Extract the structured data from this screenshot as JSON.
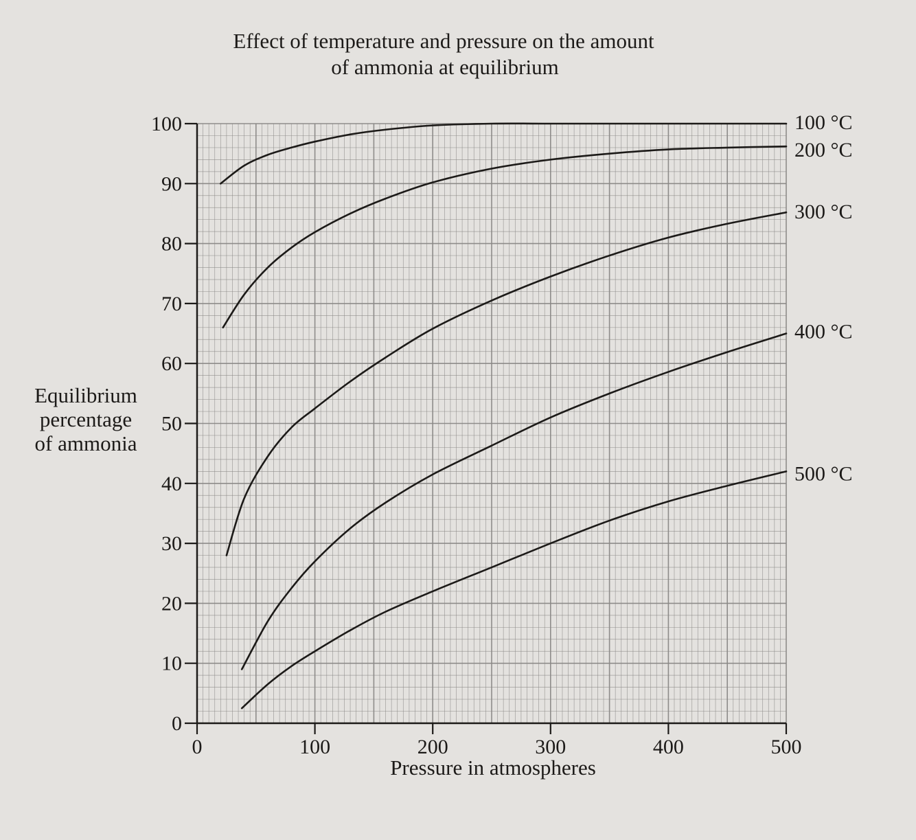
{
  "chart_data": {
    "type": "line",
    "title": "Effect of temperature and pressure on the amount",
    "subtitle": "of ammonia at equilibrium",
    "xlabel": "Pressure in atmospheres",
    "ylabel_lines": [
      "Equilibrium",
      "percentage",
      "of ammonia"
    ],
    "xlim": [
      0,
      500
    ],
    "ylim": [
      0,
      100
    ],
    "x_ticks": [
      "0",
      "100",
      "200",
      "300",
      "400",
      "500"
    ],
    "y_ticks": [
      "0",
      "10",
      "20",
      "30",
      "40",
      "50",
      "60",
      "70",
      "80",
      "90",
      "100"
    ],
    "grid": true,
    "legend": "series labels at right end of each curve",
    "line_color": "#1c1a18",
    "grid_color": "#8a8886",
    "series": [
      {
        "name": "100 °C",
        "x": [
          20,
          40,
          60,
          80,
          100,
          130,
          160,
          200,
          250,
          300,
          350,
          400,
          450,
          500
        ],
        "y": [
          90,
          93,
          94.8,
          96,
          97,
          98.2,
          99,
          99.7,
          100,
          100,
          100,
          100,
          100,
          100
        ]
      },
      {
        "name": "200 °C",
        "x": [
          22,
          40,
          60,
          80,
          100,
          130,
          160,
          200,
          250,
          300,
          350,
          400,
          450,
          500
        ],
        "y": [
          66,
          71.5,
          76,
          79.3,
          81.9,
          85,
          87.5,
          90.2,
          92.5,
          94,
          95,
          95.7,
          96,
          96.2
        ]
      },
      {
        "name": "300 °C",
        "x": [
          25,
          40,
          60,
          80,
          100,
          130,
          160,
          200,
          250,
          300,
          350,
          400,
          450,
          500
        ],
        "y": [
          28,
          37.5,
          44.5,
          49.3,
          52.5,
          57,
          61,
          65.8,
          70.5,
          74.5,
          78,
          81,
          83.3,
          85.2
        ]
      },
      {
        "name": "400 °C",
        "x": [
          38,
          60,
          80,
          100,
          130,
          160,
          200,
          250,
          300,
          350,
          400,
          450,
          500
        ],
        "y": [
          9,
          17,
          22.5,
          27,
          32.5,
          36.8,
          41.5,
          46.3,
          51,
          55,
          58.6,
          61.9,
          65
        ]
      },
      {
        "name": "500 °C",
        "x": [
          38,
          60,
          80,
          100,
          130,
          160,
          200,
          250,
          300,
          350,
          400,
          450,
          500
        ],
        "y": [
          2.5,
          6.5,
          9.5,
          12,
          15.5,
          18.6,
          22,
          26,
          30,
          33.8,
          37,
          39.6,
          42
        ]
      }
    ]
  }
}
